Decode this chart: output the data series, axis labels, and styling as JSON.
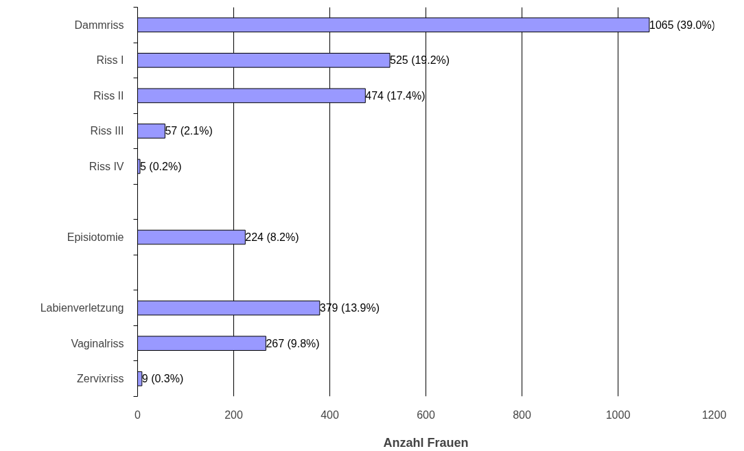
{
  "chart_data": {
    "type": "bar",
    "orientation": "horizontal",
    "xlabel": "Anzahl Frauen",
    "categories": [
      "Dammriss",
      "Riss I",
      "Riss II",
      "Riss III",
      "Riss IV",
      null,
      "Episiotomie",
      null,
      "Labienverletzung",
      "Vaginalriss",
      "Zervixriss"
    ],
    "values": [
      1065,
      525,
      474,
      57,
      5,
      null,
      224,
      null,
      379,
      267,
      9
    ],
    "value_labels": [
      "1065 (39.0%)",
      "525 (19.2%)",
      "474 (17.4%)",
      "57 (2.1%)",
      "5 (0.2%)",
      null,
      "224 (8.2%)",
      null,
      "379 (13.9%)",
      "267 (9.8%)",
      "9 (0.3%)"
    ],
    "color": "#9999ff",
    "xlim": [
      0,
      1200
    ],
    "xticks": [
      0,
      200,
      400,
      600,
      800,
      1000,
      1200
    ],
    "grid": "x"
  }
}
